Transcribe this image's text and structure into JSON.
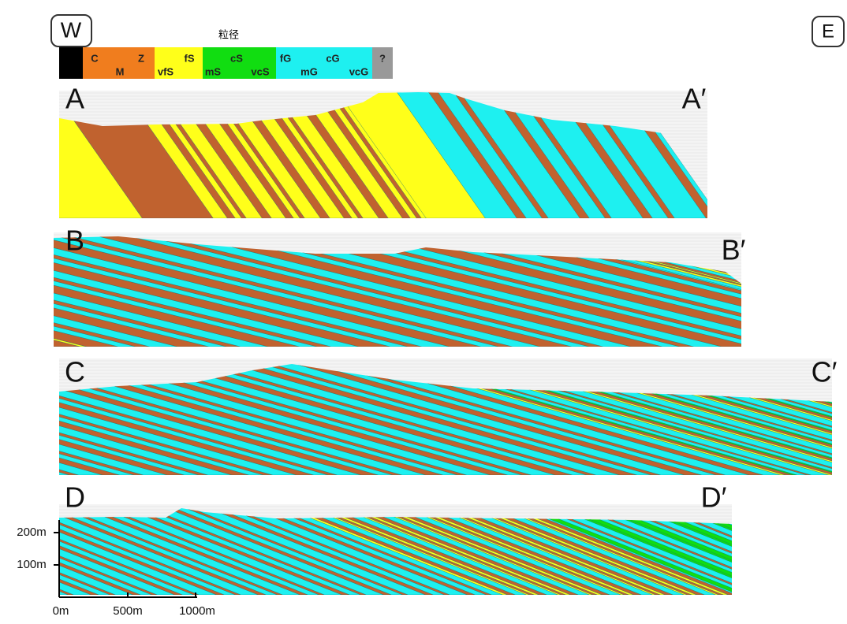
{
  "header": {
    "west": "W",
    "east": "E"
  },
  "legend": {
    "title": "粒径",
    "labels": [
      "C",
      "M",
      "Z",
      "vfS",
      "fS",
      "mS",
      "cS",
      "vcS",
      "fG",
      "mG",
      "cG",
      "vcG",
      "?"
    ]
  },
  "sections": [
    {
      "label": "A",
      "label_end": "A′"
    },
    {
      "label": "B",
      "label_end": "B′"
    },
    {
      "label": "C",
      "label_end": "C′"
    },
    {
      "label": "D",
      "label_end": "D′"
    }
  ],
  "scale": {
    "vertical": [
      "200m",
      "100m"
    ],
    "horizontal": [
      "0m",
      "500m",
      "1000m"
    ]
  }
}
